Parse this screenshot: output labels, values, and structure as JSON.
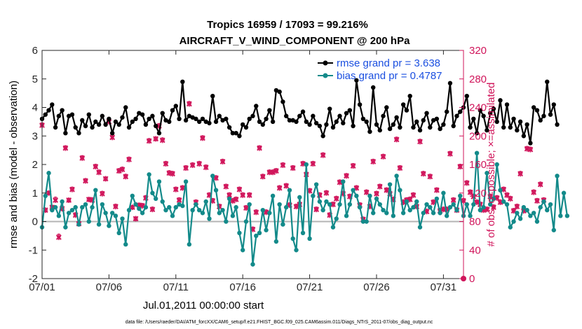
{
  "chart_data": {
    "type": "line",
    "title": "Tropics 16959 / 17093 = 99.216%",
    "subtitle": "AIRCRAFT_V_WIND_COMPONENT @ 200 hPa",
    "xlabel": "Jul.01,2011 00:00:00 start",
    "ylabel_left": "rmse and bias (model - observation)",
    "ylabel_right": "# of obs: o=possible; ×=assimilated",
    "footnote": "data file: /Users/raeder/DAI/ATM_forcXX/CAM6_setup/f.e21.FHIST_BGC.f09_025.CAM6assim.011/Diags_NTrS_2011-07/obs_diag_output.nc",
    "xlim": [
      1,
      32.5
    ],
    "ylim_left": [
      -2,
      6
    ],
    "ylim_right": [
      0,
      320
    ],
    "x_ticks": [
      1,
      6,
      11,
      16,
      21,
      26,
      31
    ],
    "x_tick_labels": [
      "07/01",
      "07/06",
      "07/11",
      "07/16",
      "07/21",
      "07/26",
      "07/31"
    ],
    "y_ticks_left": [
      -2,
      -1,
      0,
      1,
      2,
      3,
      4,
      5,
      6
    ],
    "y_ticks_right": [
      0,
      40,
      80,
      120,
      160,
      200,
      240,
      280,
      320
    ],
    "step_days": 0.25,
    "x_start": 1,
    "colors": {
      "rmse": "#000000",
      "bias": "#138a8a",
      "obs": "#d0145a",
      "legend_text": "#1a4fe0",
      "zero_line": "#b4b4b4"
    },
    "legend": [
      {
        "name": "rmse",
        "label": "rmse grand pr = 3.638"
      },
      {
        "name": "bias",
        "label": "bias grand pr = 0.4787"
      }
    ],
    "series": [
      {
        "name": "rmse",
        "axis": "left",
        "values": [
          3.6,
          3.75,
          3.9,
          4.1,
          3.3,
          3.7,
          3.9,
          3.1,
          3.7,
          3.75,
          3.3,
          3.1,
          3.55,
          3.35,
          3.75,
          3.3,
          3.5,
          3.4,
          3.7,
          3.4,
          3.6,
          3.1,
          3.5,
          3.4,
          3.65,
          4.0,
          3.3,
          3.5,
          3.6,
          3.8,
          3.75,
          3.4,
          3.6,
          3.7,
          3.35,
          3.1,
          3.8,
          3.55,
          3.5,
          3.9,
          4.05,
          3.6,
          4.9,
          3.55,
          3.7,
          3.65,
          3.6,
          3.5,
          3.6,
          3.5,
          3.45,
          4.4,
          3.5,
          3.7,
          3.55,
          3.6,
          3.3,
          3.1,
          3.1,
          3.0,
          3.4,
          3.3,
          3.6,
          3.7,
          4.05,
          3.5,
          3.4,
          3.6,
          3.9,
          3.5,
          4.6,
          4.55,
          4.2,
          3.7,
          3.55,
          3.55,
          3.5,
          3.7,
          3.85,
          3.5,
          3.4,
          3.7,
          3.45,
          3.35,
          3.0,
          3.4,
          3.95,
          3.3,
          3.5,
          3.7,
          3.45,
          3.8,
          3.9,
          3.35,
          4.95,
          4.1,
          3.6,
          3.5,
          3.15,
          4.7,
          3.4,
          3.2,
          3.7,
          4.0,
          3.25,
          3.4,
          3.65,
          3.3,
          4.1,
          3.9,
          4.4,
          3.3,
          3.5,
          3.2,
          3.55,
          3.8,
          3.3,
          3.55,
          3.6,
          3.25,
          3.4,
          3.85,
          4.85,
          3.35,
          3.7,
          3.85,
          4.0,
          4.4,
          3.3,
          3.6,
          3.1,
          3.9,
          3.7,
          3.2,
          3.8,
          3.95,
          3.5,
          4.25,
          3.3,
          4.1,
          3.3,
          3.6,
          3.2,
          3.5,
          3.0,
          3.4,
          2.75,
          4.0,
          3.9,
          3.55,
          3.7,
          4.9,
          3.75,
          4.1,
          3.4
        ]
      },
      {
        "name": "bias",
        "axis": "left",
        "values": [
          -0.2,
          0.9,
          1.7,
          0.4,
          0.5,
          0.2,
          0.7,
          -0.2,
          0.3,
          0.4,
          0.5,
          -0.1,
          0.5,
          0.6,
          0.0,
          0.5,
          1.1,
          -0.1,
          0.6,
          0.3,
          -0.15,
          0.3,
          0.2,
          -0.4,
          0.1,
          -0.8,
          0.4,
          0.9,
          0.6,
          0.45,
          0.3,
          0.5,
          1.65,
          1.0,
          0.8,
          1.4,
          0.7,
          0.4,
          0.5,
          0.2,
          0.5,
          0.6,
          0.55,
          1.4,
          -0.8,
          0.4,
          0.6,
          0.4,
          0.3,
          0.7,
          0.1,
          1.6,
          1.1,
          0.3,
          0.4,
          0.0,
          0.8,
          0.2,
          0.5,
          -0.4,
          -1.0,
          0.0,
          0.6,
          -1.5,
          -0.5,
          -0.4,
          0.4,
          -0.3,
          0.3,
          0.9,
          -0.7,
          0.6,
          -0.1,
          0.5,
          1.1,
          -0.6,
          -1.0,
          0.85,
          -0.4,
          2.0,
          -0.6,
          0.9,
          1.3,
          0.7,
          0.4,
          0.7,
          0.6,
          -0.2,
          0.1,
          0.6,
          1.4,
          0.2,
          0.6,
          1.1,
          0.9,
          0.5,
          0.0,
          0.0,
          0.9,
          0.3,
          0.8,
          0.6,
          0.4,
          0.3,
          1.3,
          0.2,
          1.6,
          1.1,
          0.3,
          0.7,
          0.4,
          0.5,
          0.7,
          -0.2,
          0.3,
          0.6,
          0.5,
          0.3,
          0.8,
          0.3,
          1.0,
          0.2,
          0.5,
          0.6,
          0.4,
          0.9,
          0.2,
          0.6,
          0.2,
          0.6,
          2.4,
          0.4,
          0.5,
          1.7,
          0.6,
          0.8,
          2.0,
          1.1,
          0.7,
          0.6,
          -0.2,
          0.0,
          0.3,
          0.1,
          0.5,
          0.4,
          0.2,
          0.3,
          0.0,
          0.5,
          0.7,
          0.4,
          0.6,
          -0.3,
          1.6,
          0.2,
          1.0,
          0.2
        ]
      },
      {
        "name": "obs_possible",
        "axis": "right",
        "marker": "o",
        "values": [
          216,
          96,
          120,
          100,
          112,
          60,
          98,
          184,
          110,
          126,
          90,
          78,
          170,
          138,
          111,
          111,
          158,
          150,
          120,
          140,
          222,
          200,
          102,
          152,
          154,
          144,
          168,
          100,
          84,
          103,
          103,
          114,
          194,
          98,
          196,
          215,
          195,
          162,
          149,
          148,
          126,
          111,
          128,
          156,
          246,
          160,
          108,
          162,
          198,
          157,
          118,
          110,
          142,
          102,
          165,
          130,
          118,
          110,
          112,
          126,
          118,
          100,
          118,
          70,
          94,
          184,
          144,
          94,
          150,
          150,
          152,
          128,
          160,
          131,
          104,
          156,
          102,
          105,
          162,
          147,
          124,
          162,
          98,
          118,
          174,
          121,
          90,
          105,
          113,
          136,
          120,
          145,
          116,
          159,
          128,
          104,
          84,
          122,
          102,
          165,
          120,
          130,
          172,
          125,
          120,
          112,
          196,
          156,
          108,
          111,
          112,
          118,
          102,
          193,
          148,
          95,
          144,
          108,
          125,
          96,
          98,
          98,
          176,
          111,
          97,
          158,
          110,
          135,
          122,
          116,
          108,
          105,
          97,
          98,
          116,
          101,
          114,
          108,
          126,
          118,
          113,
          96,
          102,
          148,
          96,
          183,
          182,
          122,
          110,
          133,
          111
        ]
      },
      {
        "name": "obs_assimilated",
        "axis": "right",
        "marker": "x",
        "values": [
          215,
          96,
          120,
          100,
          110,
          58,
          98,
          183,
          110,
          125,
          89,
          77,
          169,
          137,
          111,
          110,
          157,
          149,
          119,
          140,
          220,
          198,
          101,
          151,
          153,
          143,
          167,
          100,
          84,
          103,
          102,
          113,
          193,
          97,
          196,
          214,
          194,
          161,
          148,
          147,
          125,
          110,
          127,
          155,
          245,
          159,
          107,
          161,
          197,
          156,
          117,
          109,
          141,
          101,
          164,
          129,
          117,
          109,
          111,
          125,
          117,
          99,
          117,
          69,
          93,
          183,
          143,
          93,
          149,
          149,
          151,
          127,
          159,
          130,
          103,
          155,
          101,
          104,
          161,
          146,
          123,
          161,
          97,
          117,
          173,
          120,
          89,
          104,
          112,
          135,
          119,
          144,
          115,
          158,
          127,
          103,
          83,
          121,
          101,
          164,
          119,
          129,
          171,
          124,
          119,
          111,
          195,
          155,
          107,
          110,
          111,
          117,
          101,
          192,
          147,
          94,
          143,
          107,
          124,
          95,
          97,
          97,
          175,
          110,
          96,
          157,
          109,
          134,
          121,
          115,
          107,
          104,
          96,
          97,
          115,
          100,
          113,
          107,
          125,
          117,
          112,
          95,
          101,
          147,
          95,
          182,
          181,
          121,
          109,
          132,
          110
        ]
      }
    ]
  }
}
